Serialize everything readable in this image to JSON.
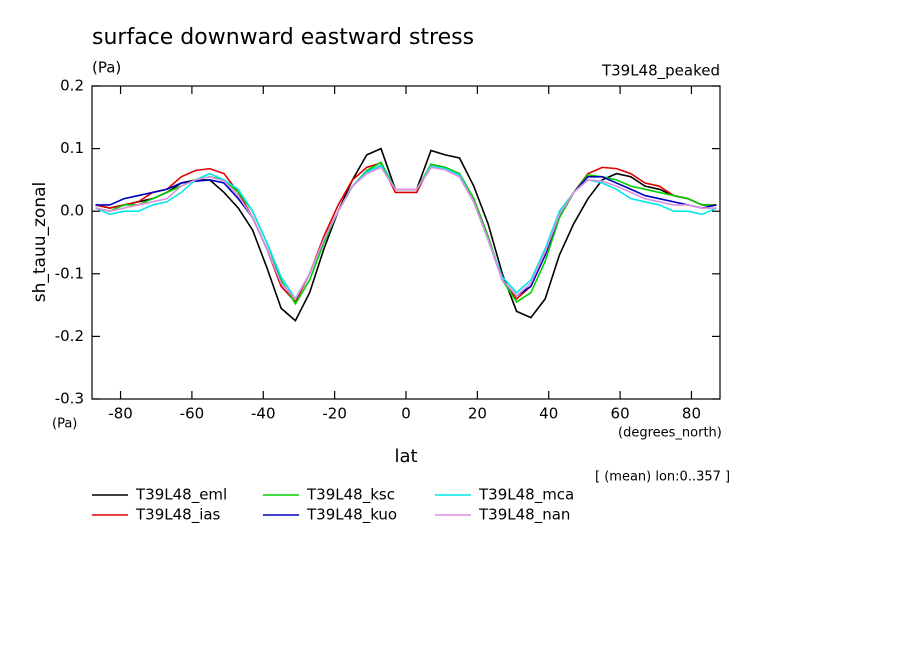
{
  "chart_data": {
    "type": "line",
    "title": "surface downward eastward stress",
    "y_units": "(Pa)",
    "experiment": "T39L48_peaked",
    "y_label": "sh_tauu_zonal",
    "y_units_bottom": "(Pa)",
    "x_units": "(degrees_north)",
    "x_label": "lat",
    "annotation": "[ (mean) lon:0..357 ]",
    "x": [
      -87,
      -83,
      -79,
      -75,
      -71,
      -67,
      -63,
      -59,
      -55,
      -51,
      -47,
      -43,
      -39,
      -35,
      -31,
      -27,
      -23,
      -19,
      -15,
      -11,
      -7,
      -3,
      3,
      7,
      11,
      15,
      19,
      23,
      27,
      31,
      35,
      39,
      43,
      47,
      51,
      55,
      59,
      63,
      67,
      71,
      75,
      79,
      83,
      87
    ],
    "xlim": [
      -88,
      88
    ],
    "xticks": [
      -80,
      -60,
      -40,
      -20,
      0,
      20,
      40,
      60,
      80
    ],
    "ylim": [
      -0.3,
      0.2
    ],
    "yticks": [
      -0.3,
      -0.2,
      -0.1,
      {
        "value": 0,
        "label": "0.0"
      },
      0.1,
      0.2
    ],
    "series": [
      {
        "name": "T39L48_eml",
        "color": "#000000",
        "values": [
          0.01,
          0.005,
          0.01,
          0.015,
          0.02,
          0.03,
          0.045,
          0.05,
          0.05,
          0.03,
          0.005,
          -0.03,
          -0.09,
          -0.155,
          -0.175,
          -0.13,
          -0.06,
          0.0,
          0.05,
          0.09,
          0.1,
          0.035,
          0.035,
          0.097,
          0.09,
          0.085,
          0.04,
          -0.02,
          -0.1,
          -0.16,
          -0.17,
          -0.14,
          -0.07,
          -0.02,
          0.02,
          0.05,
          0.06,
          0.055,
          0.04,
          0.035,
          0.025,
          0.02,
          0.01,
          0.01
        ]
      },
      {
        "name": "T39L48_ias",
        "color": "#e00000",
        "values": [
          0.01,
          0.005,
          0.01,
          0.015,
          0.03,
          0.035,
          0.055,
          0.065,
          0.068,
          0.06,
          0.03,
          -0.01,
          -0.06,
          -0.12,
          -0.145,
          -0.1,
          -0.04,
          0.01,
          0.05,
          0.07,
          0.077,
          0.03,
          0.03,
          0.075,
          0.07,
          0.06,
          0.02,
          -0.04,
          -0.11,
          -0.14,
          -0.12,
          -0.07,
          -0.01,
          0.03,
          0.06,
          0.07,
          0.068,
          0.06,
          0.045,
          0.04,
          0.025,
          0.02,
          0.01,
          0.01
        ]
      },
      {
        "name": "T39L48_ksc",
        "color": "#00d000",
        "values": [
          0.005,
          0.0,
          0.01,
          0.01,
          0.02,
          0.03,
          0.04,
          0.05,
          0.055,
          0.05,
          0.03,
          0.0,
          -0.05,
          -0.11,
          -0.148,
          -0.11,
          -0.05,
          0.0,
          0.04,
          0.065,
          0.078,
          0.035,
          0.035,
          0.075,
          0.07,
          0.06,
          0.02,
          -0.04,
          -0.11,
          -0.145,
          -0.13,
          -0.08,
          -0.01,
          0.03,
          0.058,
          0.055,
          0.05,
          0.04,
          0.035,
          0.03,
          0.025,
          0.02,
          0.01,
          0.01
        ]
      },
      {
        "name": "T39L48_kuo",
        "color": "#0000c0",
        "values": [
          0.01,
          0.01,
          0.02,
          0.025,
          0.03,
          0.035,
          0.045,
          0.048,
          0.05,
          0.045,
          0.02,
          -0.01,
          -0.06,
          -0.115,
          -0.14,
          -0.1,
          -0.045,
          0.0,
          0.04,
          0.063,
          0.073,
          0.035,
          0.035,
          0.07,
          0.068,
          0.055,
          0.015,
          -0.045,
          -0.11,
          -0.135,
          -0.12,
          -0.07,
          -0.005,
          0.03,
          0.055,
          0.055,
          0.045,
          0.035,
          0.025,
          0.02,
          0.015,
          0.01,
          0.005,
          0.01
        ]
      },
      {
        "name": "T39L48_mca",
        "color": "#00e8e8",
        "values": [
          0.005,
          -0.005,
          0.0,
          0.0,
          0.01,
          0.015,
          0.03,
          0.05,
          0.06,
          0.05,
          0.035,
          0.0,
          -0.05,
          -0.105,
          -0.14,
          -0.1,
          -0.045,
          0.0,
          0.04,
          0.063,
          0.073,
          0.035,
          0.035,
          0.072,
          0.068,
          0.058,
          0.015,
          -0.045,
          -0.105,
          -0.13,
          -0.11,
          -0.06,
          0.0,
          0.03,
          0.05,
          0.045,
          0.035,
          0.02,
          0.015,
          0.01,
          0.0,
          0.0,
          -0.005,
          0.005
        ]
      },
      {
        "name": "T39L48_nan",
        "color": "#e090e0",
        "values": [
          0.005,
          0.0,
          0.005,
          0.01,
          0.015,
          0.02,
          0.04,
          0.05,
          0.055,
          0.048,
          0.025,
          -0.01,
          -0.06,
          -0.115,
          -0.14,
          -0.1,
          -0.045,
          0.0,
          0.04,
          0.06,
          0.07,
          0.035,
          0.035,
          0.07,
          0.066,
          0.055,
          0.015,
          -0.045,
          -0.11,
          -0.135,
          -0.115,
          -0.065,
          -0.005,
          0.03,
          0.05,
          0.048,
          0.04,
          0.03,
          0.02,
          0.015,
          0.01,
          0.01,
          0.005,
          0.005
        ]
      }
    ]
  }
}
